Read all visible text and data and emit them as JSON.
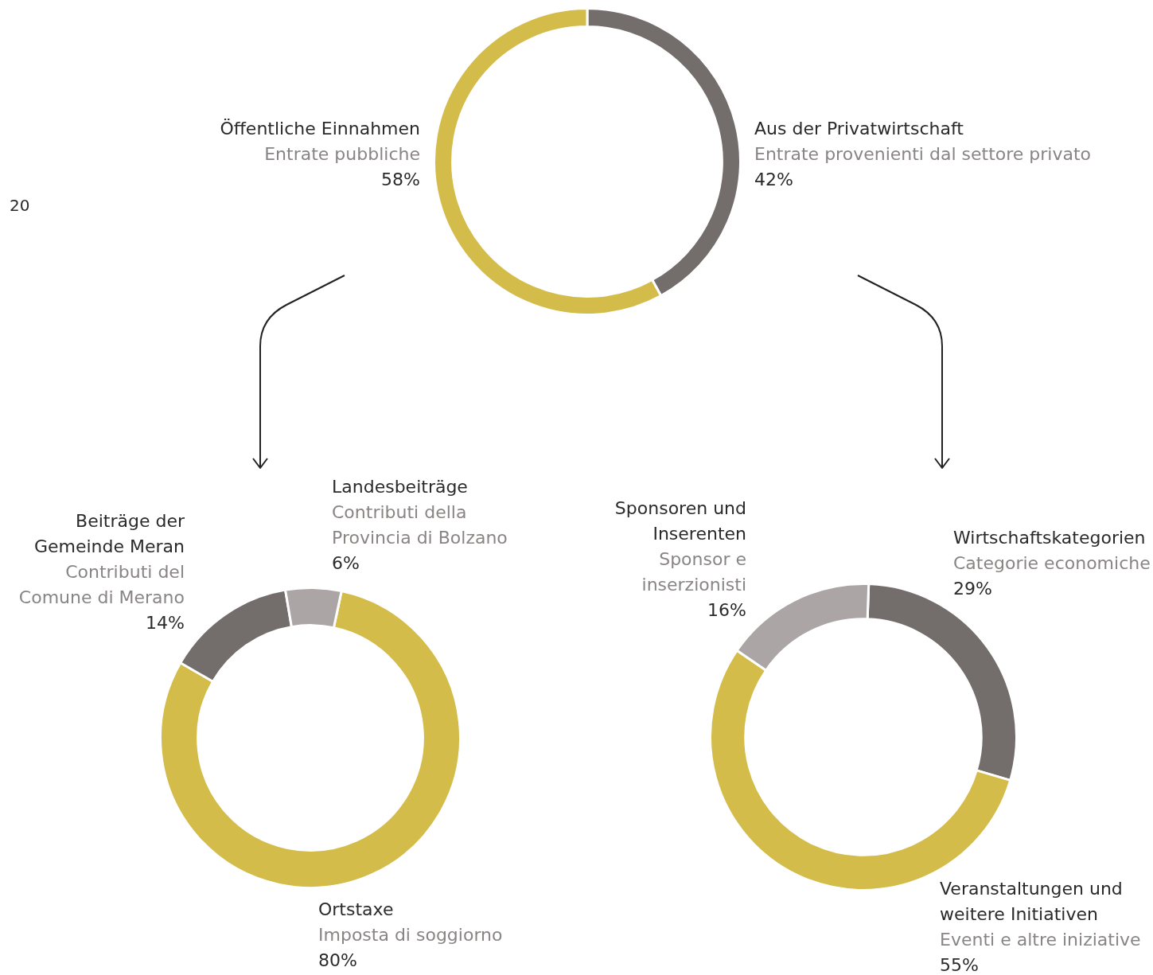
{
  "chart_data": [
    {
      "type": "donut",
      "categories": [
        "Aus der Privatwirtschaft\nEntrate provenienti dal settore privato",
        "Öffentliche Einnahmen\nEntrate pubbliche"
      ],
      "values": [
        42,
        58
      ],
      "colors": [
        "#736d6b",
        "#d4bc4a"
      ],
      "value_labels": [
        "42%",
        "58%"
      ],
      "annotations": [
        "20"
      ]
    },
    {
      "type": "donut",
      "categories": [
        "Ortstaxe\nImposta di soggiorno",
        "Beiträge der Gemeinde Meran\nContributi del Comune di Merano",
        "Landesbeiträge\nContributi della Provincia di Bolzano"
      ],
      "values": [
        80,
        14,
        6
      ],
      "colors": [
        "#d4bc4a",
        "#736d6b",
        "#aba5a5"
      ],
      "value_labels": [
        "80%",
        "14%",
        "6%"
      ]
    },
    {
      "type": "donut",
      "categories": [
        "Wirtschaftskategorien\nCategorie economiche",
        "Veranstaltungen und weitere Initiativen\nEventi e altre iniziative",
        "Sponsoren und Inserenten\nSponsor e inserzionisti"
      ],
      "values": [
        29,
        55,
        16
      ],
      "colors": [
        "#736d6b",
        "#d4bc4a",
        "#aba5a5"
      ],
      "value_labels": [
        "29%",
        "55%",
        "16%"
      ]
    }
  ]
}
